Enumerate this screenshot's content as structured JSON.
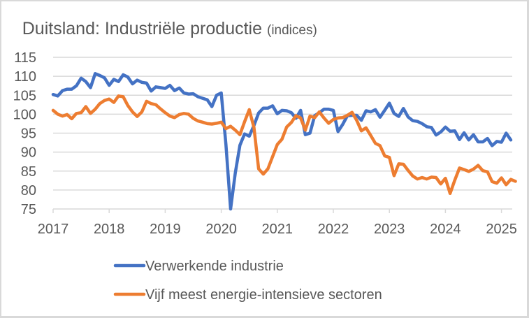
{
  "chart_data": {
    "type": "line",
    "title": "Duitsland: Industriële productie",
    "subtitle": "(indices)",
    "xlabel": "",
    "ylabel": "",
    "ylim": [
      75,
      115
    ],
    "yticks": [
      75,
      80,
      85,
      90,
      95,
      100,
      105,
      110,
      115
    ],
    "xticks": [
      "2017",
      "2018",
      "2019",
      "2020",
      "2021",
      "2022",
      "2023",
      "2024",
      "2025"
    ],
    "xrange": [
      2017.0,
      2025.25
    ],
    "grid": true,
    "legend": "bottom",
    "x_start": "2017-01",
    "frequency": "monthly",
    "series": [
      {
        "name": "Verwerkende industrie",
        "color": "#4472c4",
        "values": [
          105.2,
          104.8,
          106.2,
          106.6,
          106.6,
          107.5,
          109.5,
          108.6,
          107.0,
          110.7,
          110.2,
          109.6,
          107.6,
          109.2,
          108.6,
          110.4,
          109.8,
          108.0,
          109.0,
          108.4,
          108.2,
          106.1,
          107.2,
          107.0,
          106.8,
          107.6,
          106.2,
          106.9,
          105.6,
          105.3,
          105.4,
          104.6,
          104.2,
          103.8,
          102.0,
          105.0,
          105.6,
          92.0,
          75.0,
          84.5,
          91.8,
          94.8,
          94.2,
          97.0,
          100.3,
          101.6,
          101.6,
          102.2,
          100.1,
          101.0,
          100.9,
          100.4,
          98.9,
          101.0,
          94.6,
          95.0,
          99.6,
          100.4,
          101.3,
          101.3,
          101.0,
          95.4,
          97.3,
          99.6,
          99.7,
          99.7,
          98.4,
          100.9,
          100.6,
          101.2,
          99.2,
          101.0,
          102.9,
          100.2,
          99.4,
          101.5,
          99.3,
          98.3,
          98.1,
          97.5,
          96.7,
          96.5,
          94.5,
          95.3,
          96.6,
          95.5,
          95.6,
          93.3,
          95.1,
          93.2,
          94.6,
          92.7,
          92.7,
          93.6,
          91.7,
          92.8,
          92.6,
          95.0,
          93.2
        ]
      },
      {
        "name": "Vijf meest energie-intensieve sectoren",
        "color": "#ed7d31",
        "values": [
          101.0,
          100.0,
          99.5,
          99.9,
          98.8,
          100.2,
          100.4,
          102.0,
          100.2,
          101.3,
          102.8,
          103.6,
          104.0,
          103.1,
          104.8,
          104.6,
          102.3,
          100.6,
          99.4,
          100.6,
          103.4,
          102.8,
          102.5,
          101.4,
          100.4,
          99.5,
          99.1,
          99.9,
          100.2,
          100.0,
          98.9,
          98.2,
          97.9,
          97.5,
          97.4,
          97.6,
          97.9,
          96.2,
          96.8,
          95.8,
          94.6,
          98.0,
          101.2,
          96.5,
          85.6,
          84.2,
          85.6,
          88.8,
          92.0,
          93.4,
          96.6,
          97.8,
          99.6,
          99.0,
          95.8,
          99.5,
          99.1,
          100.6,
          99.0,
          97.6,
          98.6,
          99.0,
          99.1,
          99.7,
          100.5,
          98.4,
          95.6,
          96.4,
          94.4,
          92.3,
          91.7,
          89.0,
          88.6,
          83.8,
          86.9,
          86.8,
          85.2,
          83.7,
          82.9,
          83.3,
          82.9,
          83.4,
          83.3,
          81.6,
          83.1,
          79.1,
          82.6,
          85.8,
          85.4,
          84.9,
          85.5,
          86.5,
          85.1,
          84.8,
          82.2,
          81.8,
          83.2,
          81.4,
          82.8,
          82.3
        ]
      }
    ]
  }
}
